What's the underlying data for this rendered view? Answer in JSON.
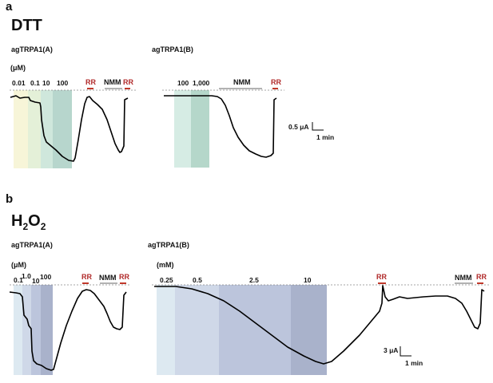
{
  "panel_a": {
    "letter": "a",
    "title": "DTT",
    "left": {
      "label": "agTRPA1(A)",
      "unit": "(μM)",
      "concentrations": [
        "0.01",
        "0.1",
        "10",
        "100"
      ],
      "rr1": "RR",
      "nmm": "NMM",
      "rr2": "RR"
    },
    "right": {
      "label": "agTRPA1(B)",
      "concentrations": [
        "100",
        "1,000"
      ],
      "nmm": "NMM",
      "rr": "RR"
    },
    "scale": {
      "current": "0.5 μA",
      "time": "1 min"
    }
  },
  "panel_b": {
    "letter": "b",
    "title_main": "H",
    "title_sub1": "2",
    "title_mid": "O",
    "title_sub2": "2",
    "left": {
      "label": "agTRPA1(A)",
      "unit": "(μM)",
      "concentrations": [
        "0.1",
        "1.0",
        "10",
        "100"
      ],
      "rr1": "RR",
      "nmm": "NMM",
      "rr2": "RR"
    },
    "right": {
      "label": "agTRPA1(B)",
      "unit": "(mM)",
      "concentrations": [
        "0.25",
        "0.5",
        "2.5",
        "10"
      ],
      "rr1": "RR",
      "nmm": "NMM",
      "rr2": "RR"
    },
    "scale": {
      "current": "3 μA",
      "time": "1 min"
    }
  },
  "colors": {
    "rr_text": "#b02a2a",
    "rr_bar": "#c0392b",
    "nmm_bar": "#999999",
    "trace": "#000000",
    "baseline": "#888888",
    "dtt_shade_1": "#f7f5d8",
    "dtt_shade_2": "#e4f0d8",
    "dtt_shade_3": "#cfe7dc",
    "dtt_shade_4": "#b7d6cd",
    "dttB_shade_1": "#d6ece4",
    "dttB_shade_2": "#b5d7ca",
    "h2o2_shade_1": "#dde9f1",
    "h2o2_shade_2": "#cfd8e8",
    "h2o2_shade_3": "#bcc5dc",
    "h2o2_shade_4": "#a9b2cb"
  }
}
